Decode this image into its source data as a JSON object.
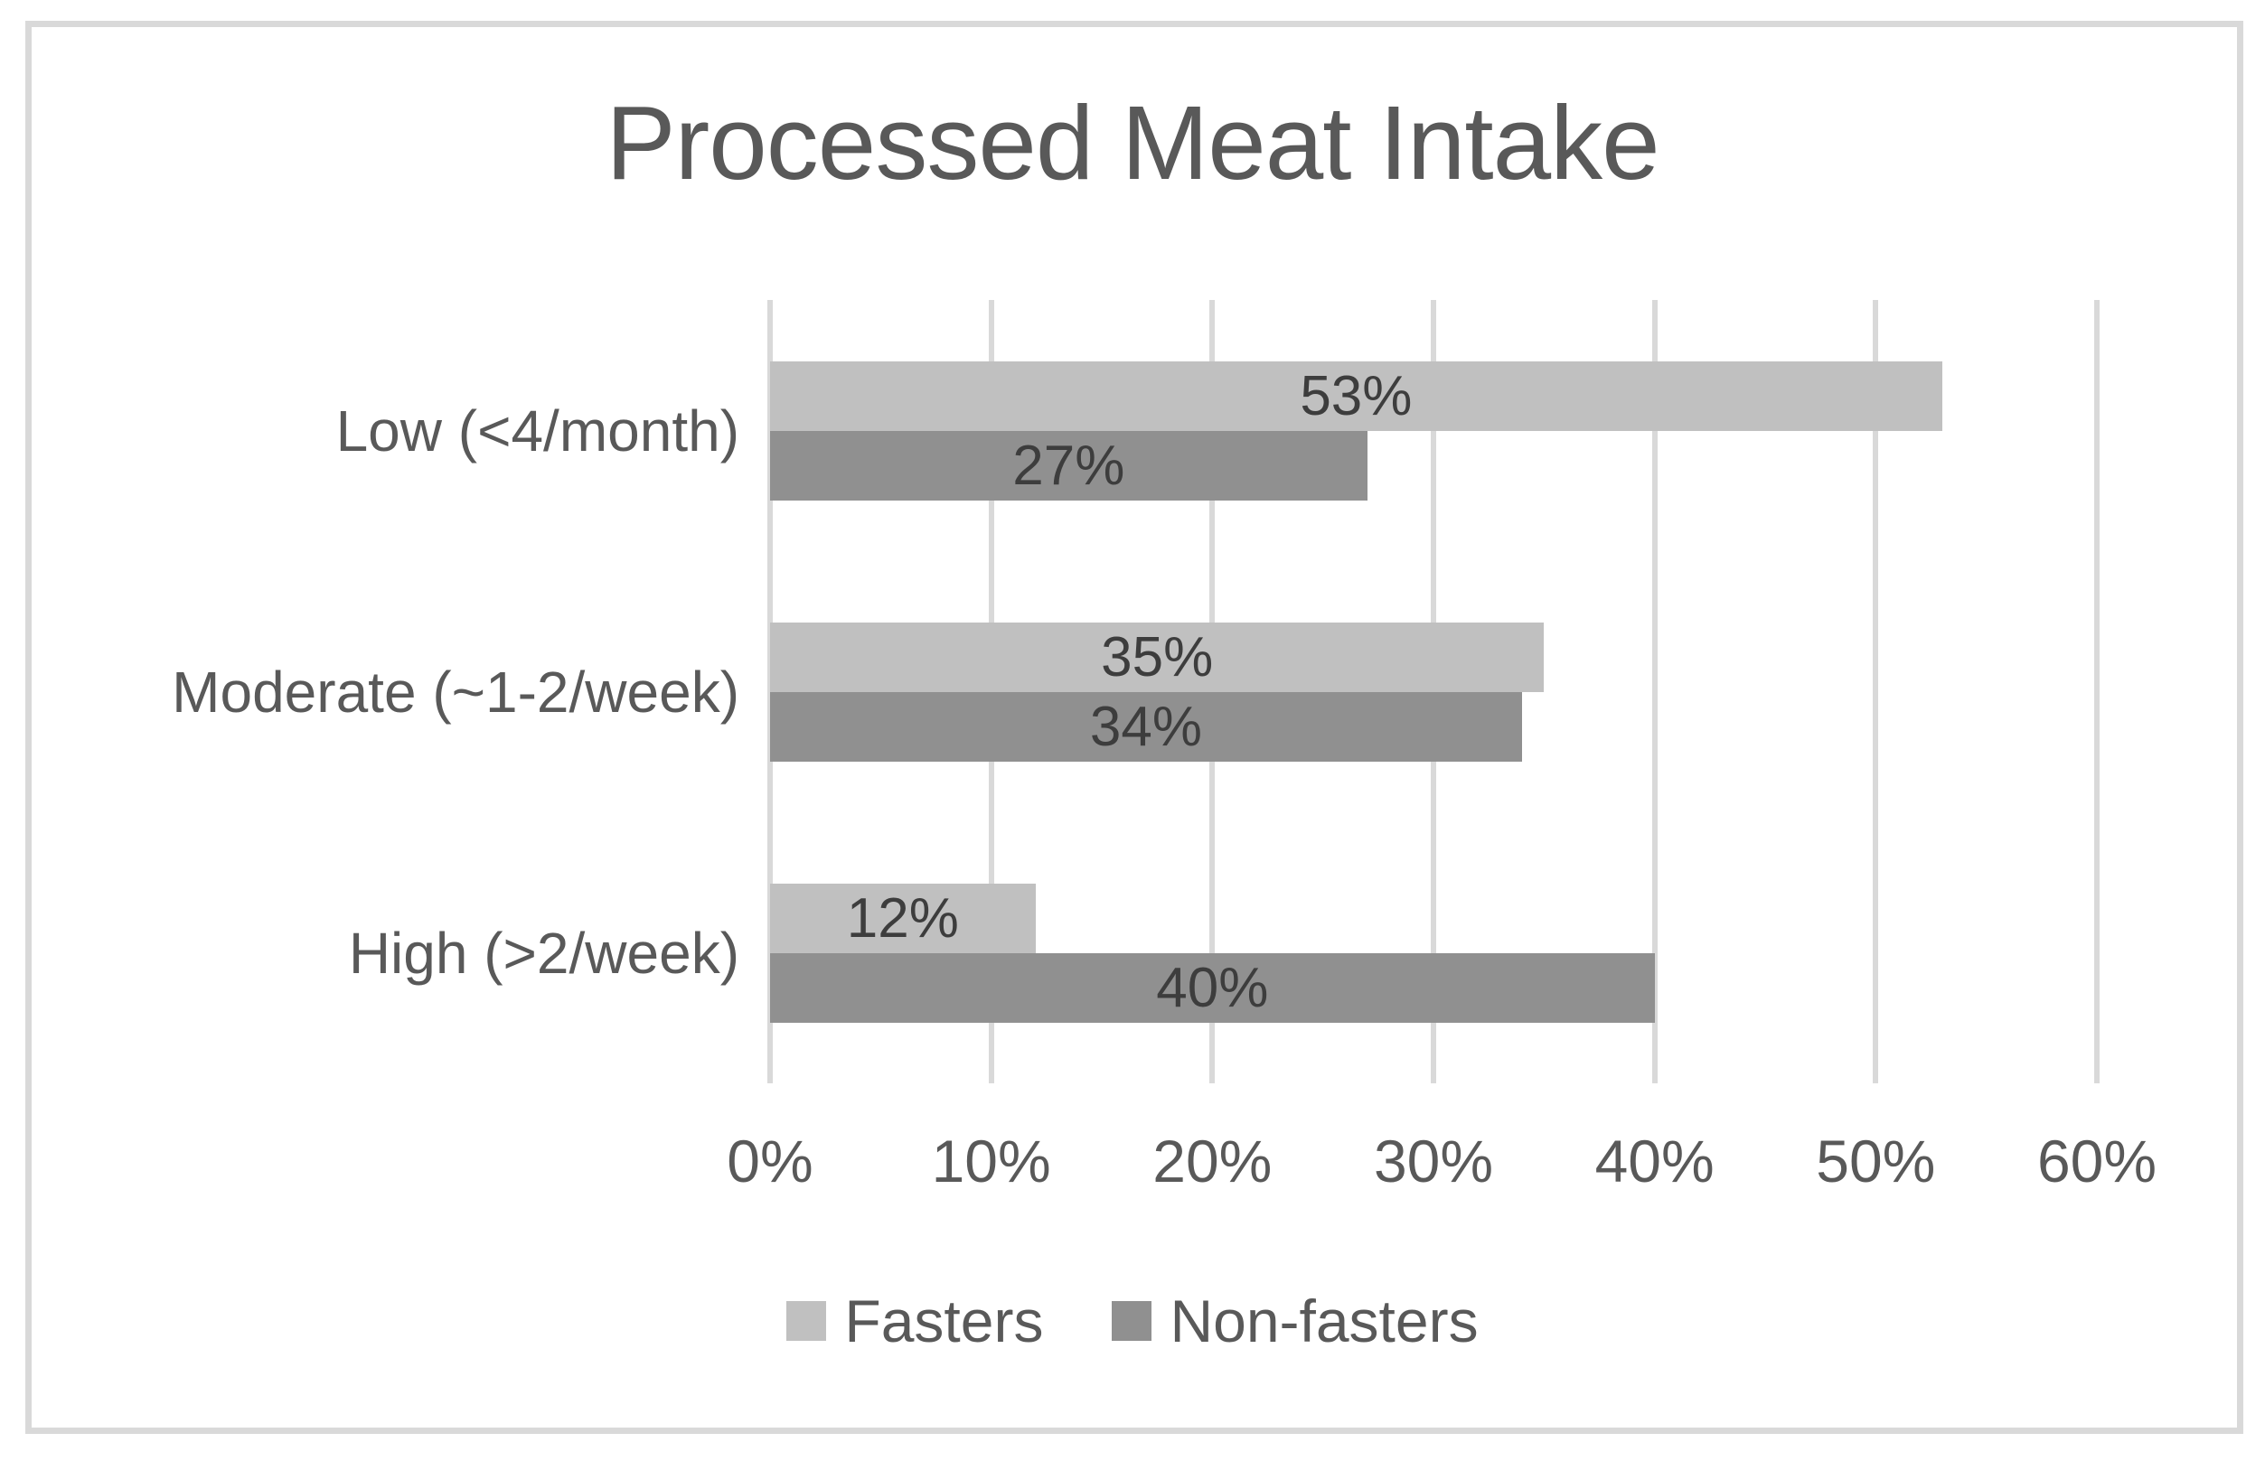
{
  "chart_data": {
    "type": "bar",
    "orientation": "horizontal",
    "title": "Processed Meat Intake",
    "categories": [
      "Low (<4/month)",
      "Moderate (~1-2/week)",
      "High (>2/week)"
    ],
    "series": [
      {
        "name": "Fasters",
        "color": "#c0c0c0",
        "values": [
          53,
          35,
          12
        ],
        "data_labels": [
          "53%",
          "35%",
          "12%"
        ]
      },
      {
        "name": "Non-fasters",
        "color": "#909090",
        "values": [
          27,
          34,
          40
        ],
        "data_labels": [
          "27%",
          "34%",
          "40%"
        ]
      }
    ],
    "xlabel": "",
    "ylabel": "",
    "xlim": [
      0,
      60
    ],
    "x_tick_values": [
      0,
      10,
      20,
      30,
      40,
      50,
      60
    ],
    "x_tick_labels": [
      "0%",
      "10%",
      "20%",
      "30%",
      "40%",
      "50%",
      "60%"
    ],
    "grid": true,
    "legend_position": "bottom",
    "legend_labels": [
      "Fasters",
      "Non-fasters"
    ]
  },
  "colors": {
    "series_fasters": "#c0c0c0",
    "series_non_fasters": "#909090",
    "gridline": "#d9d9d9",
    "frame_border": "#d9d9d9",
    "title_text": "#595959",
    "axis_text": "#595959",
    "data_label_text": "#3d3d3d",
    "background": "#ffffff"
  }
}
